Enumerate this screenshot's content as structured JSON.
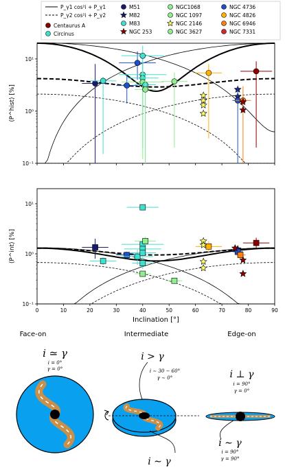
{
  "legend": {
    "model_solid_label": "P_γ1 cos²i + P_γ1",
    "model_dashed_label": "P_γ2 cos²i + P_γ2",
    "galaxies": [
      {
        "name": "Centaurus A",
        "color": "#8b0000",
        "marker": "circle"
      },
      {
        "name": "Circinus",
        "color": "#40e0d0",
        "marker": "circle"
      },
      {
        "name": "M51",
        "color": "#191970",
        "marker": "circle"
      },
      {
        "name": "M82",
        "color": "#191970",
        "marker": "star"
      },
      {
        "name": "M83",
        "color": "#40e0d0",
        "marker": "circle"
      },
      {
        "name": "NGC 253",
        "color": "#8b0000",
        "marker": "star"
      },
      {
        "name": "NGC1068",
        "color": "#90ee90",
        "marker": "circle"
      },
      {
        "name": "NGC 1097",
        "color": "#90ee90",
        "marker": "circle"
      },
      {
        "name": "NGC 2146",
        "color": "#ffff66",
        "marker": "star"
      },
      {
        "name": "NGC 3627",
        "color": "#90ee90",
        "marker": "circle"
      },
      {
        "name": "NGC 4736",
        "color": "#1e50c8",
        "marker": "circle"
      },
      {
        "name": "NGC 4826",
        "color": "#ffb000",
        "marker": "circle"
      },
      {
        "name": "NGC 6946",
        "color": "#ff7f0e",
        "marker": "circle"
      },
      {
        "name": "NGC 7331",
        "color": "#d62728",
        "marker": "circle"
      }
    ]
  },
  "chart_data": [
    {
      "type": "scatter",
      "ylabel": "⟨P^hist⟩ [%]",
      "xlim": [
        0,
        90
      ],
      "ylim": [
        0.1,
        20
      ],
      "yscale": "log",
      "yticks": [
        "10⁻¹",
        "10⁰",
        "10¹"
      ],
      "points": [
        {
          "x": 22,
          "y": 3.4,
          "xe": 5,
          "ylo": 0.1,
          "yhi": 8,
          "color": "#191970",
          "marker": "circle"
        },
        {
          "x": 25,
          "y": 3.8,
          "xe": 5,
          "ylo": 0.15,
          "yhi": 4.5,
          "color": "#40e0d0",
          "marker": "circle"
        },
        {
          "x": 34,
          "y": 3.1,
          "xe": 4,
          "ylo": 1.4,
          "yhi": 5,
          "color": "#1e50c8",
          "marker": "circle"
        },
        {
          "x": 38,
          "y": 8.4,
          "xe": 7,
          "ylo": 4,
          "yhi": 14,
          "color": "#1e50c8",
          "marker": "circle"
        },
        {
          "x": 40,
          "y": 11.5,
          "xe": 8,
          "ylo": 6,
          "yhi": 18,
          "color": "#40e0d0",
          "marker": "circle"
        },
        {
          "x": 40,
          "y": 5.0,
          "xe": 9,
          "ylo": 1,
          "yhi": 10,
          "color": "#40e0d0",
          "marker": "circle"
        },
        {
          "x": 40,
          "y": 4.3,
          "xe": 6,
          "ylo": 0.2,
          "yhi": 8,
          "color": "#40e0d0",
          "marker": "circle"
        },
        {
          "x": 40,
          "y": 3.6,
          "xe": 8,
          "ylo": 0.12,
          "yhi": 6,
          "color": "#90ee90",
          "marker": "circle"
        },
        {
          "x": 41,
          "y": 3.2,
          "xe": 4,
          "ylo": 0.1,
          "yhi": 5,
          "color": "#40e0d0",
          "marker": "circle"
        },
        {
          "x": 41,
          "y": 2.6,
          "xe": 4,
          "ylo": 0.1,
          "yhi": 4,
          "color": "#90ee90",
          "marker": "circle"
        },
        {
          "x": 52,
          "y": 3.7,
          "xe": 5,
          "ylo": 0.2,
          "yhi": 5.5,
          "color": "#90ee90",
          "marker": "circle"
        },
        {
          "x": 65,
          "y": 5.4,
          "xe": 5,
          "ylo": 0.3,
          "yhi": 8,
          "color": "#ffb000",
          "marker": "circle"
        },
        {
          "x": 63,
          "y": 2.0,
          "xe": 0,
          "ylo": 2.0,
          "yhi": 2.0,
          "color": "#ffff66",
          "marker": "star"
        },
        {
          "x": 63,
          "y": 1.6,
          "xe": 0,
          "ylo": 1.6,
          "yhi": 1.6,
          "color": "#ffff66",
          "marker": "star"
        },
        {
          "x": 63,
          "y": 1.3,
          "xe": 0,
          "ylo": 1.3,
          "yhi": 1.3,
          "color": "#ffff66",
          "marker": "star"
        },
        {
          "x": 63,
          "y": 0.9,
          "xe": 0,
          "ylo": 0.9,
          "yhi": 0.9,
          "color": "#ffff66",
          "marker": "star"
        },
        {
          "x": 76,
          "y": 2.6,
          "xe": 0,
          "ylo": 2.6,
          "yhi": 2.6,
          "color": "#191970",
          "marker": "star"
        },
        {
          "x": 76,
          "y": 1.9,
          "xe": 0,
          "ylo": 1.9,
          "yhi": 1.9,
          "color": "#191970",
          "marker": "star"
        },
        {
          "x": 76,
          "y": 1.6,
          "xe": 2,
          "ylo": 0.1,
          "yhi": 3,
          "color": "#1e50c8",
          "marker": "circle"
        },
        {
          "x": 78,
          "y": 1.6,
          "xe": 3,
          "ylo": 0.1,
          "yhi": 3,
          "color": "#ff7f0e",
          "marker": "circle"
        },
        {
          "x": 78,
          "y": 1.5,
          "xe": 0,
          "ylo": 1.5,
          "yhi": 1.5,
          "color": "#8b0000",
          "marker": "star"
        },
        {
          "x": 78,
          "y": 1.05,
          "xe": 0,
          "ylo": 1.05,
          "yhi": 1.05,
          "color": "#8b0000",
          "marker": "star"
        },
        {
          "x": 83,
          "y": 5.8,
          "xe": 6,
          "ylo": 0.2,
          "yhi": 9,
          "color": "#8b0000",
          "marker": "circle"
        }
      ]
    },
    {
      "type": "scatter",
      "ylabel": "⟨P^int⟩ [%]",
      "xlabel": "Inclination [°]",
      "xlim": [
        0,
        90
      ],
      "ylim": [
        0.1,
        20
      ],
      "yscale": "log",
      "xticks": [
        "0",
        "10",
        "20",
        "30",
        "40",
        "50",
        "60",
        "70",
        "80",
        "90"
      ],
      "yticks": [
        "10⁻¹",
        "10⁰",
        "10¹"
      ],
      "points": [
        {
          "x": 22,
          "y": 1.35,
          "xe": 5,
          "ylo": 0.8,
          "yhi": 2.0,
          "color": "#191970",
          "marker": "square"
        },
        {
          "x": 25,
          "y": 0.72,
          "xe": 5,
          "ylo": 0.6,
          "yhi": 0.85,
          "color": "#40e0d0",
          "marker": "square"
        },
        {
          "x": 34,
          "y": 0.95,
          "xe": 4,
          "ylo": 0.8,
          "yhi": 1.1,
          "color": "#1e50c8",
          "marker": "square"
        },
        {
          "x": 38,
          "y": 0.88,
          "xe": 6,
          "ylo": 0.6,
          "yhi": 1.2,
          "color": "#40e0d0",
          "marker": "square"
        },
        {
          "x": 40,
          "y": 8.5,
          "xe": 6,
          "ylo": 8,
          "yhi": 9,
          "color": "#40e0d0",
          "marker": "square"
        },
        {
          "x": 40,
          "y": 1.55,
          "xe": 8,
          "ylo": 1.2,
          "yhi": 2.0,
          "color": "#40e0d0",
          "marker": "square"
        },
        {
          "x": 40,
          "y": 1.25,
          "xe": 7,
          "ylo": 1.0,
          "yhi": 1.5,
          "color": "#40e0d0",
          "marker": "square"
        },
        {
          "x": 40,
          "y": 1.05,
          "xe": 5,
          "ylo": 0.9,
          "yhi": 1.2,
          "color": "#40e0d0",
          "marker": "square"
        },
        {
          "x": 41,
          "y": 1.8,
          "xe": 4,
          "ylo": 1.5,
          "yhi": 2.2,
          "color": "#90ee90",
          "marker": "square"
        },
        {
          "x": 40,
          "y": 0.65,
          "xe": 4,
          "ylo": 0.5,
          "yhi": 0.85,
          "color": "#40e0d0",
          "marker": "square"
        },
        {
          "x": 40,
          "y": 0.4,
          "xe": 3,
          "ylo": 0.35,
          "yhi": 0.45,
          "color": "#90ee90",
          "marker": "square"
        },
        {
          "x": 52,
          "y": 0.29,
          "xe": 3,
          "ylo": 0.25,
          "yhi": 0.33,
          "color": "#90ee90",
          "marker": "square"
        },
        {
          "x": 65,
          "y": 1.4,
          "xe": 5,
          "ylo": 1.1,
          "yhi": 1.8,
          "color": "#ffb000",
          "marker": "square"
        },
        {
          "x": 63,
          "y": 1.8,
          "xe": 0,
          "ylo": 1.8,
          "yhi": 1.8,
          "color": "#ffff66",
          "marker": "star"
        },
        {
          "x": 63,
          "y": 1.5,
          "xe": 0,
          "ylo": 1.5,
          "yhi": 1.5,
          "color": "#ffff66",
          "marker": "star"
        },
        {
          "x": 63,
          "y": 0.7,
          "xe": 0,
          "ylo": 0.7,
          "yhi": 0.7,
          "color": "#ffff66",
          "marker": "star"
        },
        {
          "x": 63,
          "y": 0.52,
          "xe": 0,
          "ylo": 0.52,
          "yhi": 0.52,
          "color": "#ffff66",
          "marker": "star"
        },
        {
          "x": 76,
          "y": 1.25,
          "xe": 0,
          "ylo": 1.25,
          "yhi": 1.25,
          "color": "#191970",
          "marker": "star"
        },
        {
          "x": 76,
          "y": 1.1,
          "xe": 2,
          "ylo": 0.9,
          "yhi": 1.3,
          "color": "#1e50c8",
          "marker": "square"
        },
        {
          "x": 77,
          "y": 0.95,
          "xe": 2,
          "ylo": 0.8,
          "yhi": 1.1,
          "color": "#ff7f0e",
          "marker": "square"
        },
        {
          "x": 75,
          "y": 1.3,
          "xe": 0,
          "ylo": 1.3,
          "yhi": 1.3,
          "color": "#8b0000",
          "marker": "star"
        },
        {
          "x": 78,
          "y": 0.75,
          "xe": 0,
          "ylo": 0.75,
          "yhi": 0.75,
          "color": "#8b0000",
          "marker": "star"
        },
        {
          "x": 78,
          "y": 0.4,
          "xe": 0,
          "ylo": 0.4,
          "yhi": 0.4,
          "color": "#8b0000",
          "marker": "star"
        },
        {
          "x": 83,
          "y": 1.65,
          "xe": 5,
          "ylo": 1.3,
          "yhi": 2.1,
          "color": "#8b0000",
          "marker": "square"
        }
      ]
    }
  ],
  "diagram": {
    "faceon": {
      "title": "Face-on",
      "rel": "i ≃ γ",
      "l1": "i = 0°",
      "l2": "γ = 0°"
    },
    "inter": {
      "title": "Intermediate",
      "rel_top": "i > γ",
      "l1": "i ∼ 30 − 60°",
      "l2": "γ ∼ 0°",
      "rel_bot": "i ∼ γ"
    },
    "edgeon": {
      "title": "Edge-on",
      "rel_top": "i ⊥ γ",
      "l1": "i = 90°",
      "l2": "γ = 0°",
      "rel_bot": "i ∼ γ",
      "l3": "i = 90°",
      "l4": "γ = 90°"
    },
    "colors": {
      "disk": "#0aa0f0",
      "arm": "#c8904a",
      "core": "#000000"
    }
  }
}
